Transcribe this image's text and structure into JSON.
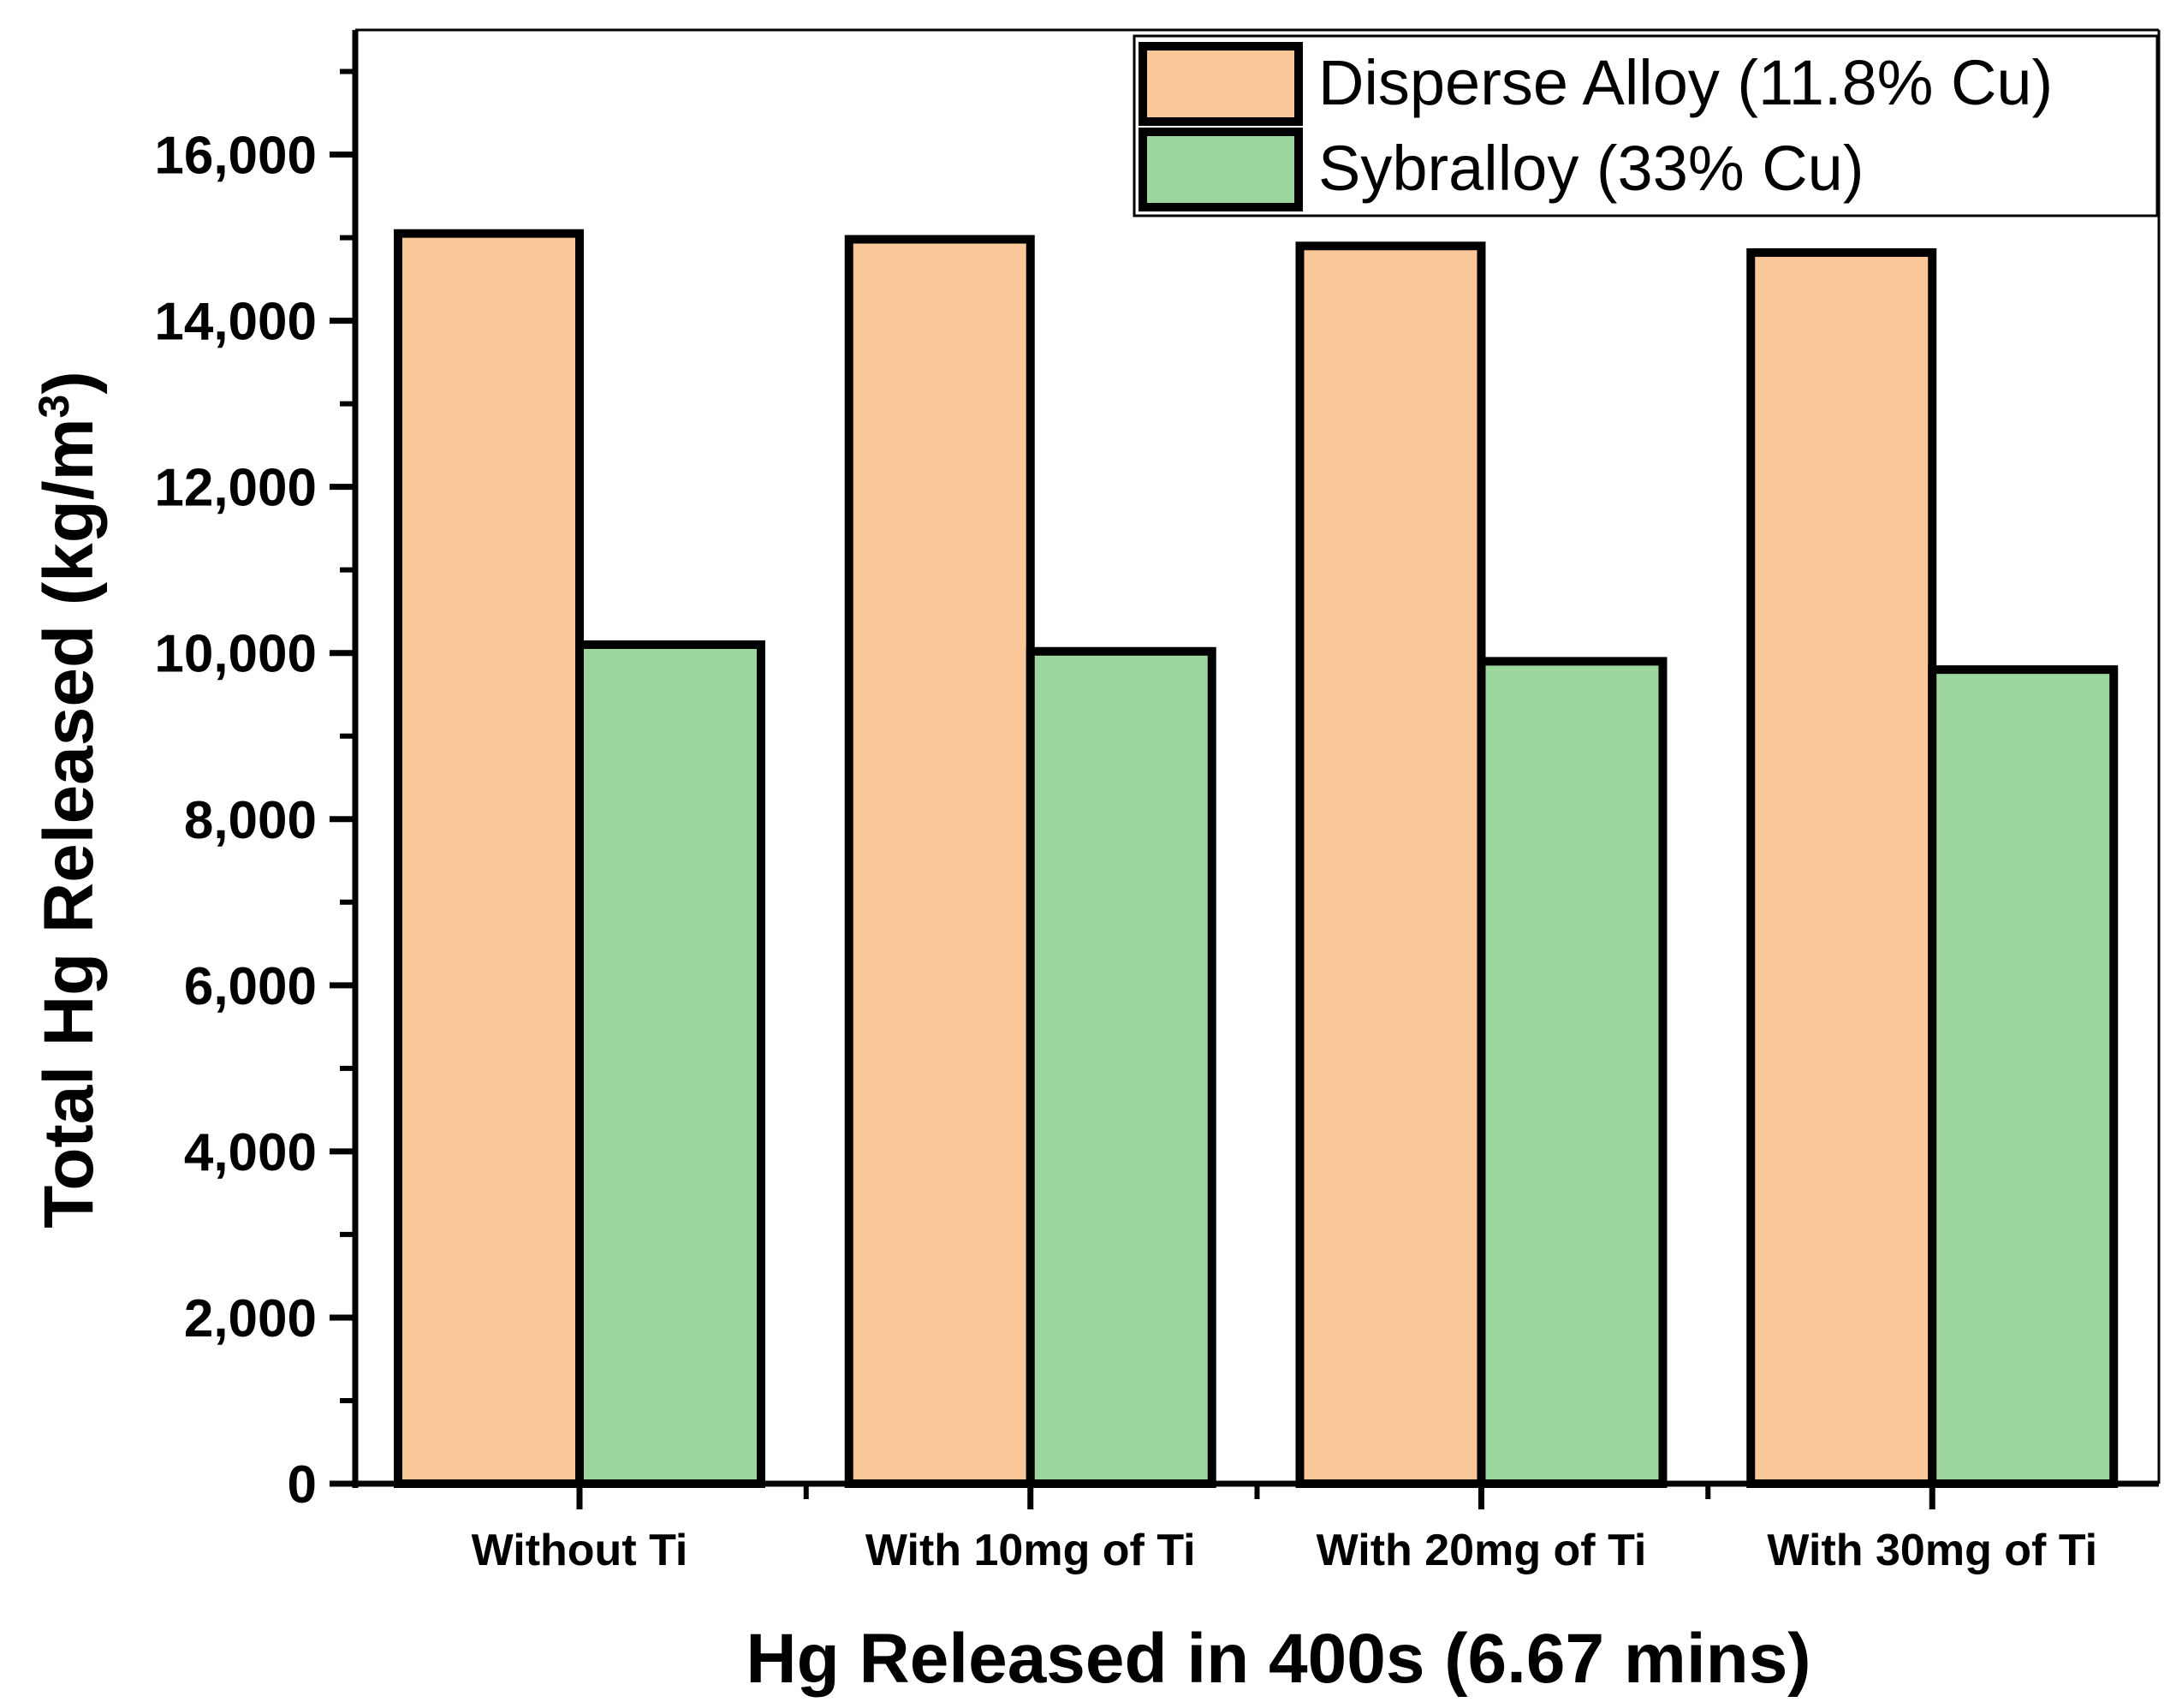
{
  "chart_data": {
    "type": "bar",
    "categories": [
      "Without Ti",
      "With 10mg of Ti",
      "With 20mg of Ti",
      "With 30mg of Ti"
    ],
    "series": [
      {
        "name": "Disperse Alloy (11.8% Cu)",
        "color": "#FAC898",
        "values": [
          15050,
          14980,
          14900,
          14820
        ]
      },
      {
        "name": "Sybralloy (33% Cu)",
        "color": "#9CD69C",
        "values": [
          10100,
          10020,
          9900,
          9800
        ]
      }
    ],
    "xlabel": "Hg Released in 400s (6.67 mins)",
    "ylabel": "Total Hg Released (kg/m",
    "ylabel_superscript": "3",
    "ylabel_suffix": ")",
    "ylim": [
      0,
      17500
    ],
    "yticks": [
      0,
      2000,
      4000,
      6000,
      8000,
      10000,
      12000,
      14000,
      16000
    ],
    "ytick_labels": [
      "0",
      "2,000",
      "4,000",
      "6,000",
      "8,000",
      "10,000",
      "12,000",
      "14,000",
      "16,000"
    ],
    "grid": false,
    "legend_position": "top-right"
  }
}
